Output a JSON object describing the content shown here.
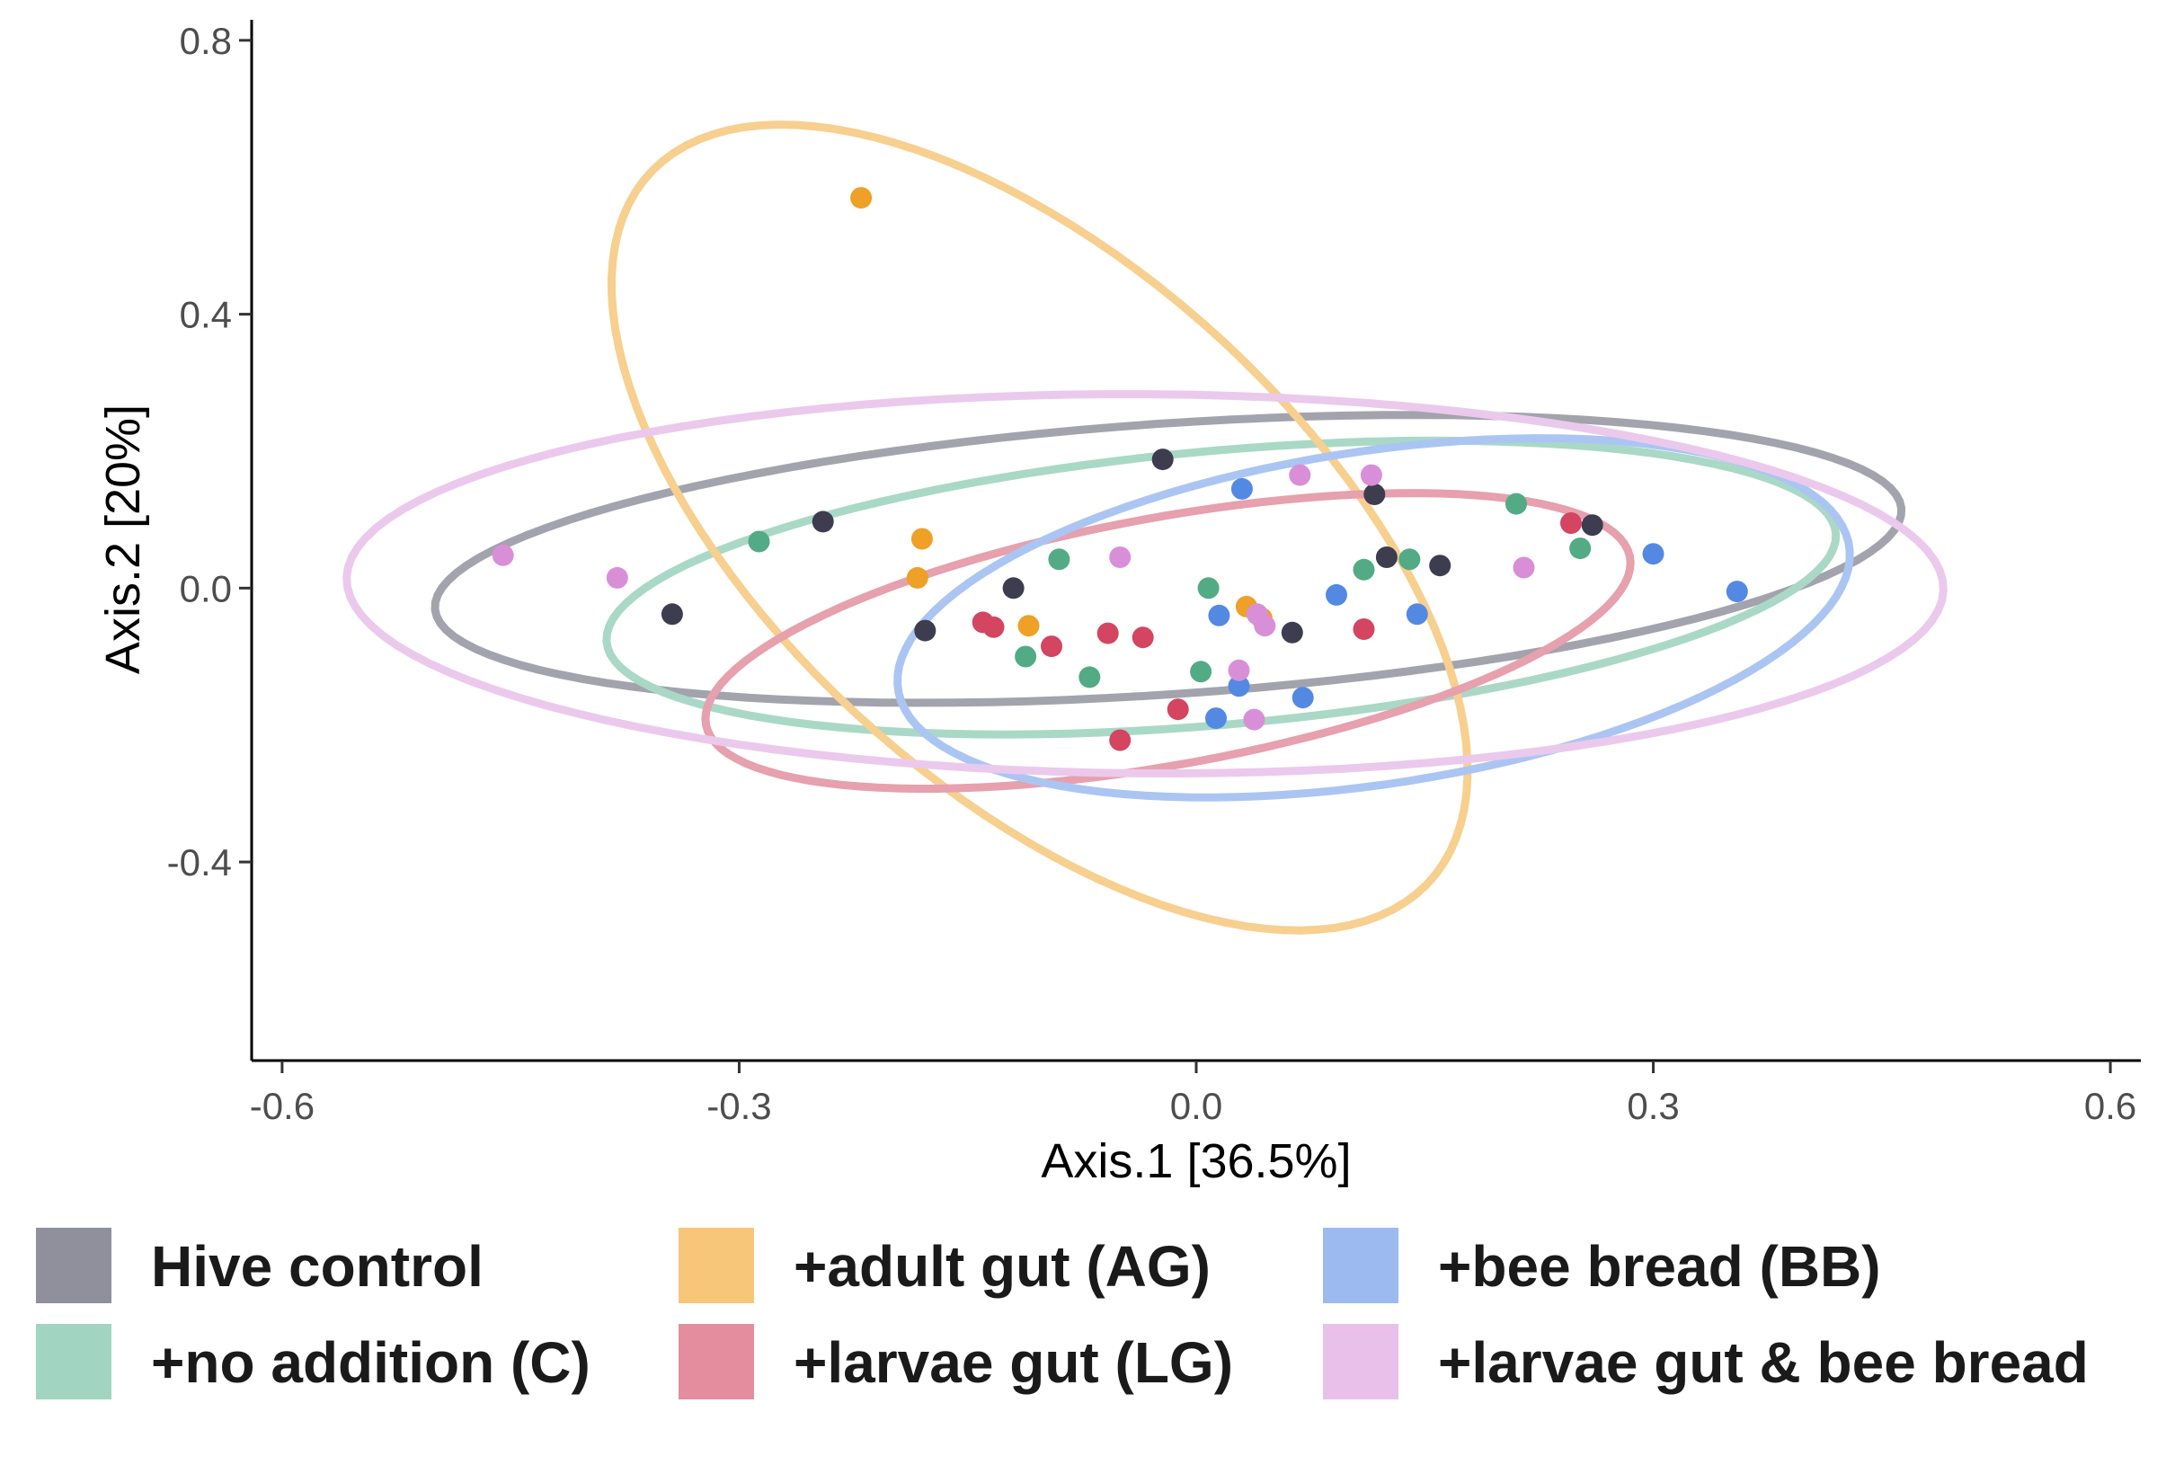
{
  "chart_data": {
    "type": "scatter",
    "title": "",
    "xlabel": "Axis.1   [36.5%]",
    "ylabel": "Axis.2   [20%]",
    "xlim": [
      -0.62,
      0.62
    ],
    "ylim": [
      -0.69,
      0.83
    ],
    "x_ticks": [
      -0.6,
      -0.3,
      0.0,
      0.3,
      0.6
    ],
    "x_tick_labels": [
      "-0.6",
      "-0.3",
      "0.0",
      "0.3",
      "0.6"
    ],
    "y_ticks": [
      -0.4,
      0.0,
      0.4,
      0.8
    ],
    "y_tick_labels": [
      "-0.4",
      "0.0",
      "0.4",
      "0.8"
    ],
    "grid": false,
    "legend_position": "bottom",
    "ellipses": true,
    "series": [
      {
        "name": "Hive control",
        "color": "#3d3d4f",
        "legend_color": "#8f909c",
        "ellipse_color": "#a2a3ad",
        "x": [
          -0.245,
          -0.344,
          -0.178,
          -0.12,
          -0.022,
          0.117,
          0.125,
          0.16,
          0.26,
          0.063
        ],
        "y": [
          0.097,
          -0.038,
          -0.062,
          0.0,
          0.188,
          0.137,
          0.045,
          0.033,
          0.092,
          -0.065
        ]
      },
      {
        "name": "+no addition (C)",
        "color": "#52ab85",
        "legend_color": "#a1d5c1",
        "ellipse_color": "#a9d9c6",
        "x": [
          -0.287,
          -0.09,
          -0.112,
          -0.07,
          0.008,
          0.003,
          0.11,
          0.14,
          0.21,
          0.252
        ],
        "y": [
          0.068,
          0.042,
          -0.1,
          -0.13,
          0.0,
          -0.122,
          0.027,
          0.042,
          0.123,
          0.058
        ]
      },
      {
        "name": "+adult gut (AG)",
        "color": "#efa027",
        "legend_color": "#f7c679",
        "ellipse_color": "#f7cf8f",
        "x": [
          -0.22,
          -0.18,
          -0.183,
          -0.11,
          0.033,
          0.043
        ],
        "y": [
          0.57,
          0.072,
          0.015,
          -0.055,
          -0.027,
          -0.044
        ]
      },
      {
        "name": "+larvae gut (LG)",
        "color": "#d34560",
        "legend_color": "#e38d9f",
        "ellipse_color": "#e6a0ae",
        "x": [
          -0.14,
          -0.133,
          -0.095,
          -0.058,
          -0.035,
          -0.012,
          -0.05,
          0.11,
          0.246
        ],
        "y": [
          -0.05,
          -0.057,
          -0.085,
          -0.066,
          -0.072,
          -0.177,
          -0.222,
          -0.06,
          0.095
        ]
      },
      {
        "name": "+bee bread (BB)",
        "color": "#5489e3",
        "legend_color": "#9cbaef",
        "ellipse_color": "#abc5f3",
        "x": [
          0.03,
          0.015,
          0.028,
          0.013,
          0.07,
          0.092,
          0.145,
          0.3,
          0.355
        ],
        "y": [
          0.145,
          -0.04,
          -0.143,
          -0.19,
          -0.16,
          -0.01,
          -0.038,
          0.05,
          -0.005
        ]
      },
      {
        "name": "+larvae gut & bee bread",
        "color": "#d88fd8",
        "legend_color": "#e8c0e9",
        "ellipse_color": "#ebc9ec",
        "x": [
          -0.455,
          -0.38,
          -0.05,
          0.068,
          0.115,
          0.215,
          0.04,
          0.045,
          0.028,
          0.038
        ],
        "y": [
          0.048,
          0.015,
          0.045,
          0.165,
          0.165,
          0.03,
          -0.038,
          -0.055,
          -0.12,
          -0.192
        ]
      }
    ]
  }
}
